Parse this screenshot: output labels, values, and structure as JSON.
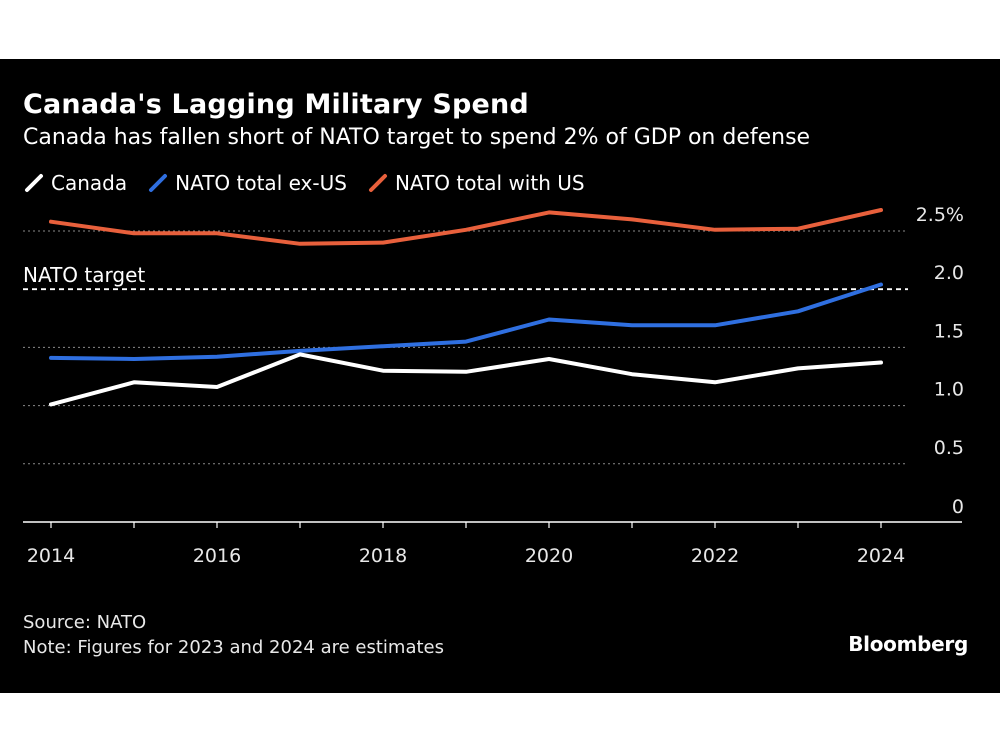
{
  "title": "Canada's Lagging Military Spend",
  "subtitle": "Canada has fallen short of NATO target to spend 2% of GDP on defense",
  "legend": [
    {
      "label": "Canada",
      "color": "#ffffff"
    },
    {
      "label": "NATO total ex-US",
      "color": "#2f6fe0"
    },
    {
      "label": "NATO total with US",
      "color": "#e8603c"
    }
  ],
  "target_label": "NATO target",
  "footer": {
    "source": "Source: NATO",
    "note": "Note: Figures for 2023 and 2024 are estimates"
  },
  "brand": "Bloomberg",
  "chart_data": {
    "type": "line",
    "title": "Canada's Lagging Military Spend",
    "subtitle": "Canada has fallen short of NATO target to spend 2% of GDP on defense",
    "xlabel": "",
    "ylabel": "",
    "x": [
      2014,
      2015,
      2016,
      2017,
      2018,
      2019,
      2020,
      2021,
      2022,
      2023,
      2024
    ],
    "xticks": [
      2014,
      2016,
      2018,
      2020,
      2022,
      2024
    ],
    "xtick_labels": [
      "2014",
      "2016",
      "2018",
      "2020",
      "2022",
      "2024"
    ],
    "yticks": [
      0,
      0.5,
      1.0,
      1.5,
      2.0,
      2.5
    ],
    "ytick_labels": [
      "0",
      "0.5",
      "1.0",
      "1.5",
      "2.0",
      "2.5%"
    ],
    "ylim": [
      0,
      2.5
    ],
    "grid": "horizontal dotted",
    "legend_position": "top-left",
    "reference_line": {
      "value": 2.0,
      "label": "NATO target",
      "style": "dashed"
    },
    "series": [
      {
        "name": "NATO total with US",
        "color": "#e8603c",
        "values": [
          2.58,
          2.48,
          2.48,
          2.39,
          2.4,
          2.51,
          2.66,
          2.6,
          2.51,
          2.52,
          2.68
        ]
      },
      {
        "name": "NATO total ex-US",
        "color": "#2f6fe0",
        "values": [
          1.41,
          1.4,
          1.42,
          1.47,
          1.51,
          1.55,
          1.74,
          1.69,
          1.69,
          1.81,
          2.04
        ]
      },
      {
        "name": "Canada",
        "color": "#ffffff",
        "values": [
          1.01,
          1.2,
          1.16,
          1.44,
          1.3,
          1.29,
          1.4,
          1.27,
          1.2,
          1.32,
          1.37
        ]
      }
    ],
    "source": "Source: NATO",
    "note": "Note: Figures for 2023 and 2024 are estimates"
  }
}
